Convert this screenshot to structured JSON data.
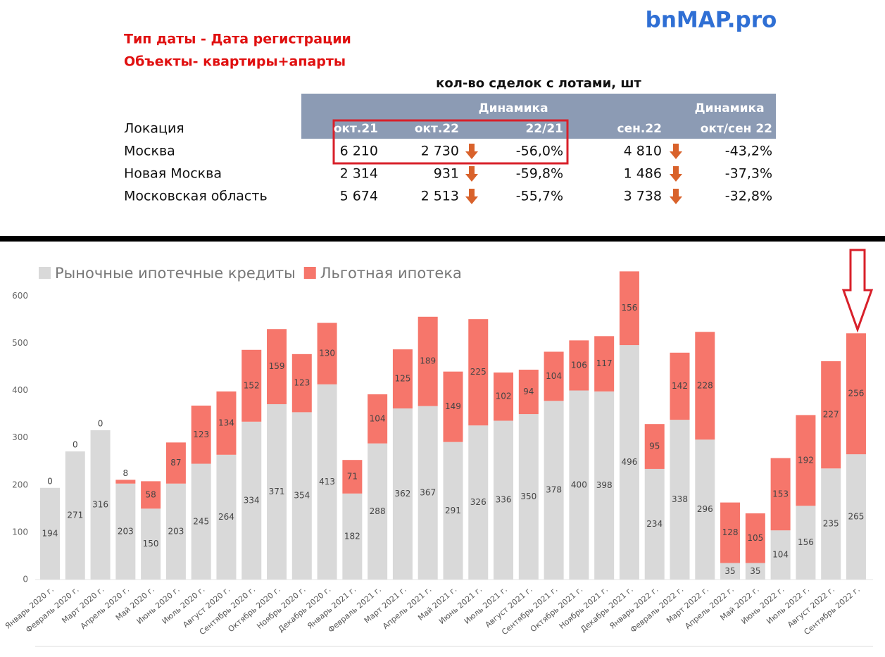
{
  "header": {
    "brand": "bnMAP.pro",
    "notes": [
      "Тип даты - Дата регистрации",
      "Объекты- квартиры+апарты"
    ]
  },
  "table": {
    "title": "кол-во сделок с лотами, шт",
    "group_headers": [
      "Динамика",
      "Динамика"
    ],
    "columns": [
      "Локация",
      "окт.21",
      "окт.22",
      "22/21",
      "сен.22",
      "окт/сен 22"
    ],
    "rows": [
      [
        "Москва",
        "6 210",
        "2 730",
        "-56,0%",
        "4 810",
        "-43,2%"
      ],
      [
        "Новая Москва",
        "2 314",
        "931",
        "-59,8%",
        "1 486",
        "-37,3%"
      ],
      [
        "Московская область",
        "5 674",
        "2 513",
        "-55,7%",
        "3 738",
        "-32,8%"
      ]
    ]
  },
  "chart_data": {
    "type": "stacked_bar",
    "categories": [
      "Январь 2020 г.",
      "Февраль 2020 г.",
      "Март 2020 г.",
      "Апрель 2020 г.",
      "Май 2020 г.",
      "Июнь 2020 г.",
      "Июль 2020 г.",
      "Август 2020 г.",
      "Сентябрь 2020 г.",
      "Октябрь 2020 г.",
      "Ноябрь 2020 г.",
      "Декабрь 2020 г.",
      "Январь 2021 г.",
      "Февраль 2021 г.",
      "Март 2021 г.",
      "Апрель 2021 г.",
      "Май 2021 г.",
      "Июнь 2021 г.",
      "Июль 2021 г.",
      "Август 2021 г.",
      "Сентябрь 2021 г.",
      "Октябрь 2021 г.",
      "Ноябрь 2021 г.",
      "Декабрь 2021 г.",
      "Январь 2022 г.",
      "Февраль 2022 г.",
      "Март 2022 г.",
      "Апрель 2022 г.",
      "Май 2022 г.",
      "Июнь 2022 г.",
      "Июль 2022 г.",
      "Август 2022 г.",
      "Сентябрь 2022 г."
    ],
    "series": [
      {
        "name": "Рыночные ипотечные кредиты",
        "color": "#d9d9d9",
        "values": [
          194,
          271,
          316,
          203,
          150,
          203,
          245,
          264,
          334,
          371,
          354,
          413,
          182,
          288,
          362,
          367,
          291,
          326,
          336,
          350,
          378,
          400,
          398,
          496,
          234,
          338,
          296,
          35,
          35,
          104,
          156,
          235,
          265
        ]
      },
      {
        "name": "Льготная ипотека",
        "color": "#f6766b",
        "values": [
          0,
          0,
          0,
          8,
          58,
          87,
          123,
          134,
          152,
          159,
          123,
          130,
          71,
          104,
          125,
          189,
          149,
          225,
          102,
          94,
          104,
          106,
          117,
          156,
          95,
          142,
          228,
          128,
          105,
          153,
          192,
          227,
          256
        ]
      }
    ],
    "ylim": [
      0,
      660
    ],
    "yticks": [
      0,
      100,
      200,
      300,
      400,
      500,
      600
    ],
    "grid": false,
    "legend": "top-left"
  }
}
